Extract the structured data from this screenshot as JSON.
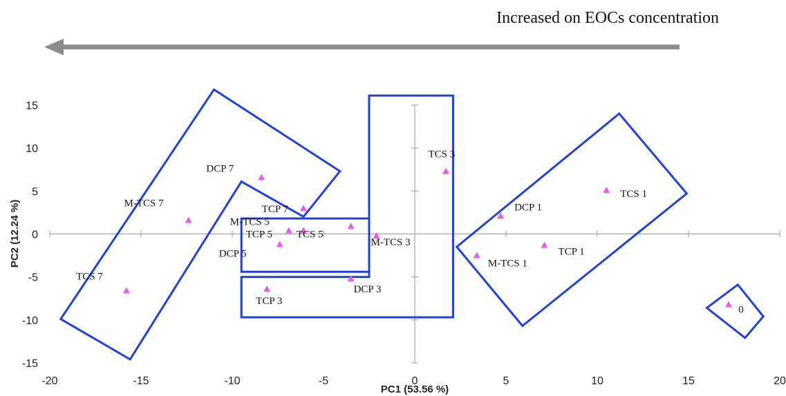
{
  "chart_data": {
    "type": "scatter",
    "title": "",
    "annotation": "Increased on EOCs concentration",
    "xlabel": "PC1 (53.56 %)",
    "ylabel": "PC2 (12.24 %)",
    "xlim": [
      -20,
      20
    ],
    "ylim": [
      -15,
      15
    ],
    "xticks": [
      -20,
      -15,
      -10,
      -5,
      0,
      5,
      10,
      15,
      20
    ],
    "yticks": [
      -15,
      -10,
      -5,
      0,
      5,
      10,
      15
    ],
    "grid": false,
    "marker": "triangle",
    "marker_color": "#e85ce8",
    "group_outline_color": "#1f3fe0",
    "arrow_color": "#8c8c8c",
    "points": [
      {
        "label": "DCP 7",
        "x": -8.4,
        "y": 6.6
      },
      {
        "label": "TCP 7",
        "x": -6.1,
        "y": 3.0
      },
      {
        "label": "M-TCS 7",
        "x": -12.4,
        "y": 1.6
      },
      {
        "label": "TCS 7",
        "x": -15.8,
        "y": -6.6
      },
      {
        "label": "M-TCS 5",
        "x": -6.9,
        "y": 0.4
      },
      {
        "label": "TCP 5",
        "x": -6.1,
        "y": 0.4
      },
      {
        "label": "DCP 5",
        "x": -7.4,
        "y": -1.2
      },
      {
        "label": "TCS 5",
        "x": -3.5,
        "y": 0.9
      },
      {
        "label": "M-TCS 3",
        "x": -2.1,
        "y": -0.2
      },
      {
        "label": "TCS 3",
        "x": 1.7,
        "y": 7.3
      },
      {
        "label": "TCP 3",
        "x": -8.1,
        "y": -6.4
      },
      {
        "label": "DCP 3",
        "x": -3.5,
        "y": -5.2
      },
      {
        "label": "DCP 1",
        "x": 4.7,
        "y": 2.1
      },
      {
        "label": "TCS 1",
        "x": 10.5,
        "y": 5.1
      },
      {
        "label": "TCP 1",
        "x": 7.1,
        "y": -1.3
      },
      {
        "label": "M-TCS 1",
        "x": 3.4,
        "y": -2.5
      },
      {
        "label": "0",
        "x": 17.2,
        "y": -8.2
      }
    ],
    "groups": [
      [
        [
          -11,
          16.8
        ],
        [
          -4.1,
          7.3
        ],
        [
          -6.1,
          2.0
        ],
        [
          -9.5,
          6.1
        ],
        [
          -15.6,
          -14.6
        ],
        [
          -19.4,
          -9.9
        ]
      ],
      [
        [
          -9.5,
          1.8
        ],
        [
          -2.5,
          1.8
        ],
        [
          -2.5,
          -4.4
        ],
        [
          -9.5,
          -4.4
        ]
      ],
      [
        [
          -2.5,
          16.1
        ],
        [
          2.1,
          16.1
        ],
        [
          2.1,
          -9.7
        ],
        [
          -9.5,
          -9.7
        ],
        [
          -9.5,
          -5.0
        ],
        [
          -2.5,
          -5.0
        ]
      ],
      [
        [
          2.3,
          -1.5
        ],
        [
          11.2,
          14.0
        ],
        [
          14.9,
          4.7
        ],
        [
          5.9,
          -10.7
        ]
      ],
      [
        [
          16.0,
          -8.6
        ],
        [
          17.7,
          -5.9
        ],
        [
          19.1,
          -9.6
        ],
        [
          18.1,
          -12.1
        ]
      ]
    ]
  }
}
